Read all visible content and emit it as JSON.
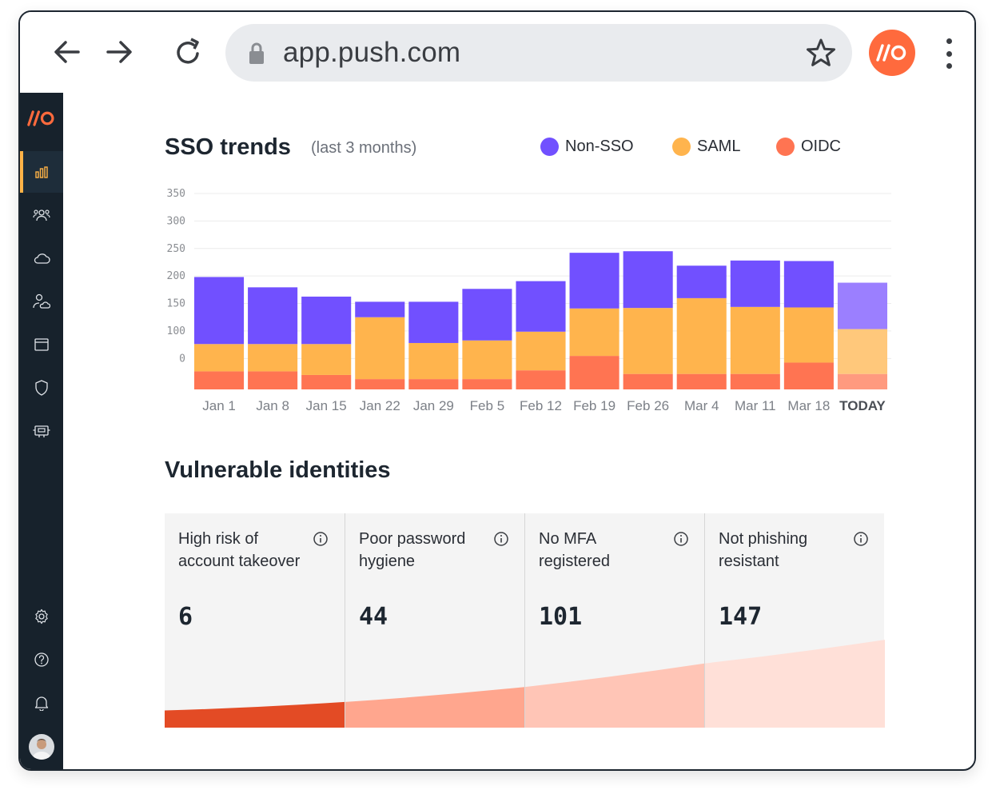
{
  "browser": {
    "url": "app.push.com",
    "profile_logo": "//O"
  },
  "sidebar": {
    "logo": "//O",
    "items": [
      {
        "icon": "bar-chart-icon",
        "active": true
      },
      {
        "icon": "users-icon",
        "active": false
      },
      {
        "icon": "cloud-icon",
        "active": false
      },
      {
        "icon": "user-cloud-icon",
        "active": false
      },
      {
        "icon": "browser-window-icon",
        "active": false
      },
      {
        "icon": "shield-icon",
        "active": false
      },
      {
        "icon": "robot-icon",
        "active": false
      }
    ],
    "bottom_items": [
      {
        "icon": "gear-icon"
      },
      {
        "icon": "help-icon"
      },
      {
        "icon": "bell-icon"
      }
    ]
  },
  "sso": {
    "title": "SSO trends",
    "subtitle": "(last 3 months)"
  },
  "chart_data": {
    "type": "bar",
    "stacked": true,
    "title": "SSO trends",
    "subtitle": "(last 3 months)",
    "categories": [
      "Jan 1",
      "Jan 8",
      "Jan 15",
      "Jan 22",
      "Jan 29",
      "Feb 5",
      "Feb 12",
      "Feb 19",
      "Feb 26",
      "Mar 4",
      "Mar 11",
      "Mar 18",
      "TODAY"
    ],
    "series": [
      {
        "name": "OIDC",
        "color": "#ff7452",
        "values": [
          35,
          35,
          28,
          20,
          20,
          20,
          37,
          65,
          30,
          30,
          30,
          52,
          30
        ]
      },
      {
        "name": "SAML",
        "color": "#ffb44d",
        "values": [
          53,
          53,
          60,
          120,
          70,
          75,
          75,
          92,
          128,
          147,
          130,
          107,
          87
        ]
      },
      {
        "name": "Non-SSO",
        "color": "#7150ff",
        "values": [
          130,
          110,
          92,
          30,
          80,
          100,
          98,
          108,
          110,
          63,
          90,
          90,
          90
        ]
      }
    ],
    "yticks": [
      0,
      100,
      150,
      200,
      250,
      300,
      350
    ],
    "legend": "top-right",
    "grid": true,
    "highlight_last": true,
    "today_colors": [
      "#ff9a7f",
      "#ffc87b",
      "#9b7fff"
    ]
  },
  "vulnerable": {
    "title": "Vulnerable identities",
    "cards": [
      {
        "label": "High risk of account takeover",
        "value": "6",
        "color": "#e34b25",
        "level_start": 0.08,
        "level_end": 0.12
      },
      {
        "label": "Poor password hygiene",
        "value": "44",
        "color": "#ffa68e",
        "level_start": 0.12,
        "level_end": 0.19
      },
      {
        "label": "No MFA registered",
        "value": "101",
        "color": "#ffc5b6",
        "level_start": 0.19,
        "level_end": 0.3
      },
      {
        "label": "Not phishing resistant",
        "value": "147",
        "color": "#ffe0d8",
        "level_start": 0.3,
        "level_end": 0.41
      }
    ]
  }
}
